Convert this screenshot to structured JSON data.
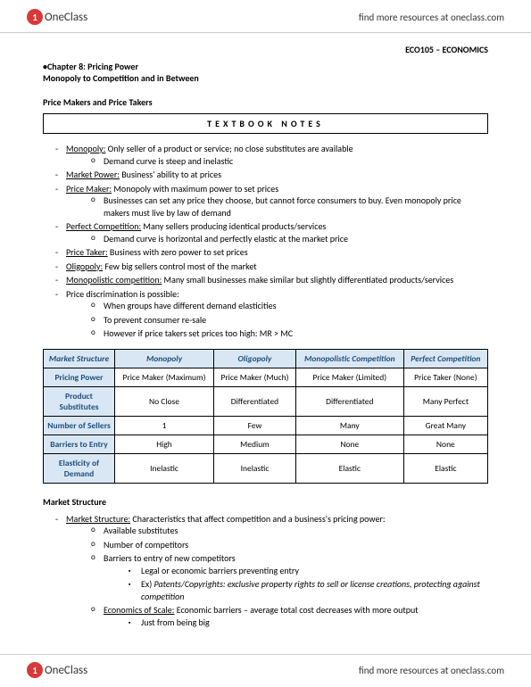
{
  "header": {
    "logo_text": "OneClass",
    "link_text": "find more resources at oneclass.com"
  },
  "course_code": "ECO105 – ECONOMICS",
  "chapter": {
    "title": "•Chapter 8: Pricing Power",
    "subtitle": "Monopoly to Competition and in Between"
  },
  "section1_title": "Price Makers and Price Takers",
  "textbook_box": "TEXTBOOK NOTES",
  "notes": {
    "monopoly_term": "Monopoly:",
    "monopoly_text": " Only seller of a product or service; no close substitutes are available",
    "monopoly_sub1": "Demand curve is steep and inelastic",
    "market_power_term": "Market Power:",
    "market_power_text": " Business' ability to at prices",
    "price_maker_term": "Price Maker:",
    "price_maker_text": " Monopoly with maximum power to set prices",
    "price_maker_sub1": "Businesses can set any price they choose, but cannot force consumers to buy. Even monopoly price makers must live by law of demand",
    "perfect_comp_term": "Perfect Competition:",
    "perfect_comp_text": " Many sellers producing identical products/services",
    "perfect_comp_sub1": "Demand curve is horizontal and perfectly elastic at the market price",
    "price_taker_term": "Price Taker:",
    "price_taker_text": " Business with zero power to set prices",
    "oligopoly_term": "Oligopoly:",
    "oligopoly_text": " Few big sellers control most of the market",
    "mono_comp_term": "Monopolistic competition:",
    "mono_comp_text": " Many small businesses make similar but slightly differentiated products/services",
    "price_disc": "Price discrimination is possible:",
    "price_disc_sub1": "When groups have different demand elasticities",
    "price_disc_sub2": "To prevent consumer re-sale",
    "price_disc_sub3": "However if price takers set prices too high: MR > MC"
  },
  "table": {
    "header_bg": "#d9e7f5",
    "header_color": "#1f4e79",
    "columns": [
      "Market Structure",
      "Monopoly",
      "Oligopoly",
      "Monopolistic Competition",
      "Perfect Competition"
    ],
    "rows": [
      {
        "label": "Pricing Power",
        "cells": [
          "Price Maker (Maximum)",
          "Price Maker (Much)",
          "Price Maker (Limited)",
          "Price Taker (None)"
        ]
      },
      {
        "label": "Product Substitutes",
        "cells": [
          "No Close",
          "Differentiated",
          "Differentiated",
          "Many Perfect"
        ]
      },
      {
        "label": "Number of Sellers",
        "cells": [
          "1",
          "Few",
          "Many",
          "Great Many"
        ]
      },
      {
        "label": "Barriers to Entry",
        "cells": [
          "High",
          "Medium",
          "None",
          "None"
        ]
      },
      {
        "label": "Elasticity of Demand",
        "cells": [
          "Inelastic",
          "Inelastic",
          "Elastic",
          "Elastic"
        ]
      }
    ]
  },
  "section2_title": "Market Structure",
  "ms": {
    "term": "Market Structure:",
    "text": " Characteristics that affect competition and a business's pricing power:",
    "sub1": "Available substitutes",
    "sub2": "Number of competitors",
    "sub3": "Barriers to entry of new competitors",
    "sub3_a": "Legal or economic barriers preventing entry",
    "sub3_b": "Ex) ",
    "sub3_b_italic": "Patents/Copyrights: exclusive property rights to sell or license creations, protecting against competition",
    "eos_term": "Economics of Scale:",
    "eos_text": " Economic barriers – average total cost decreases with more output",
    "eos_sub": "Just from being big"
  }
}
